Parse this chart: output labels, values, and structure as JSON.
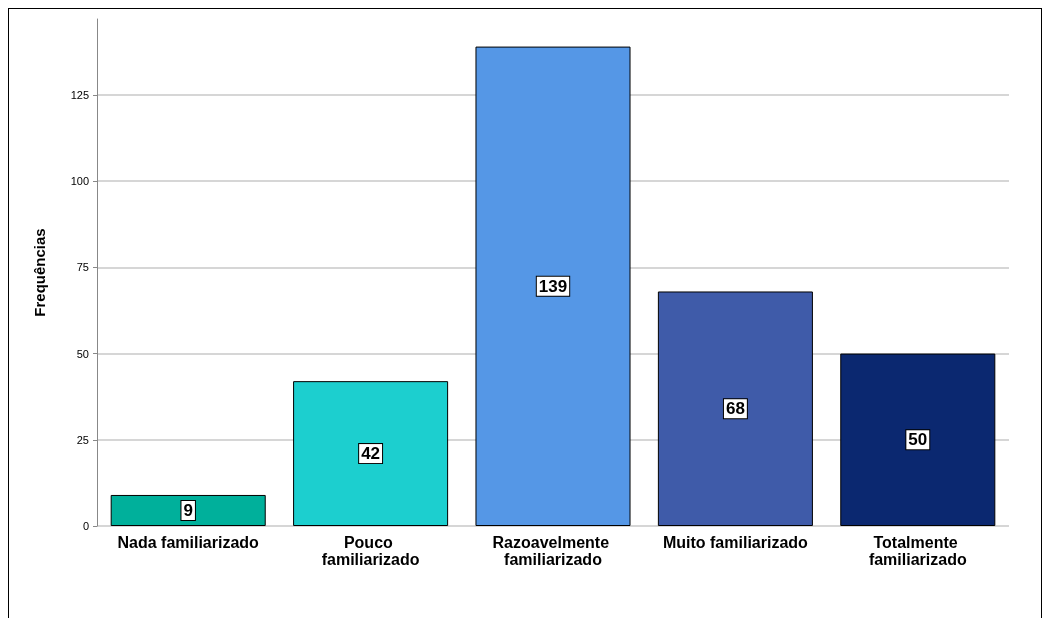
{
  "chart_data": {
    "type": "bar",
    "ylabel": "Frequências",
    "categories": [
      "Nada familiarizado",
      "Pouco familiarizado",
      "Razoavelmente familiarizado",
      "Muito familiarizado",
      "Totalmente familiarizado"
    ],
    "values": [
      9,
      42,
      139,
      68,
      50
    ],
    "colors": [
      "#00b09b",
      "#1ccfcf",
      "#5597e6",
      "#3f5ba9",
      "#0b2870"
    ],
    "ylim": [
      0,
      147
    ],
    "yticks": [
      0,
      25,
      50,
      75,
      100,
      125
    ],
    "grid": "y",
    "data_labels": true
  }
}
